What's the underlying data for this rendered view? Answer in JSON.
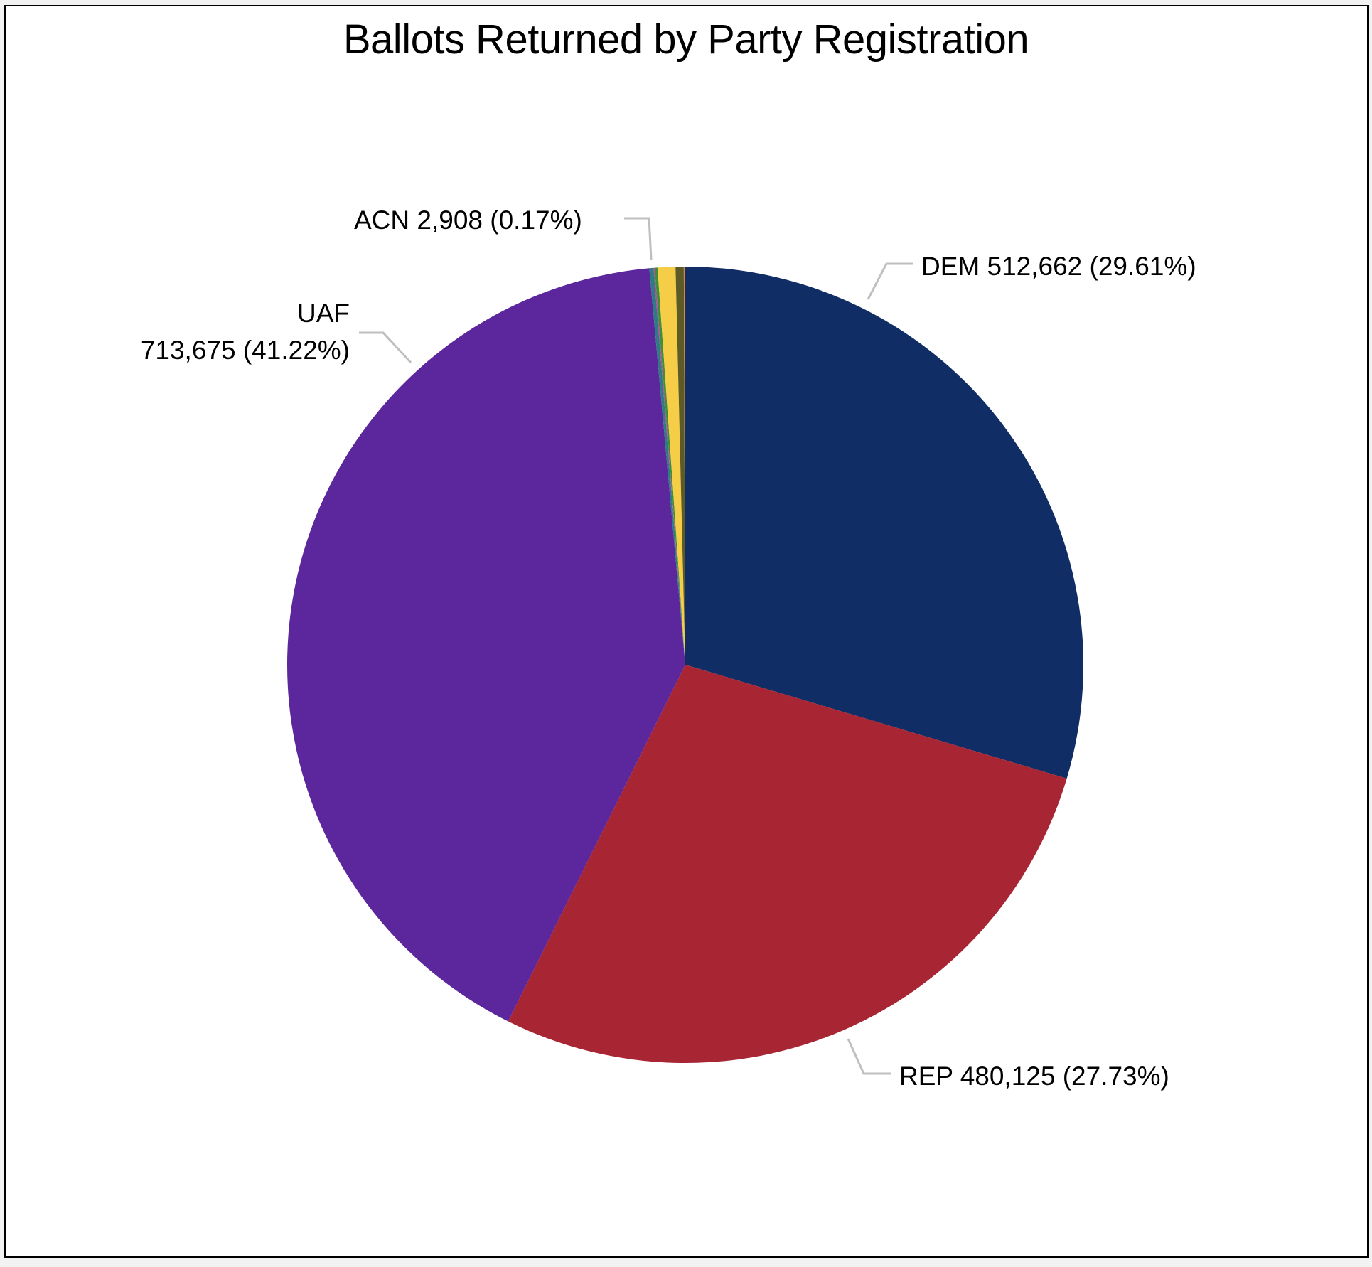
{
  "chart_data": {
    "type": "pie",
    "title": "Ballots Returned by Party Registration",
    "start_angle_deg": 0,
    "direction": "clockwise",
    "slices": [
      {
        "name": "DEM",
        "value": 512662,
        "percent": 29.61,
        "color": "#112d65",
        "label": "DEM 512,662 (29.61%)",
        "labeled": true
      },
      {
        "name": "REP",
        "value": 480125,
        "percent": 27.73,
        "color": "#a82634",
        "label": "REP 480,125 (27.73%)",
        "labeled": true
      },
      {
        "name": "UAF",
        "value": 713675,
        "percent": 41.22,
        "color": "#5c269c",
        "label_line1": "UAF",
        "label_line2": "713,675 (41.22%)",
        "labeled": true
      },
      {
        "name": "ACN",
        "value": 2908,
        "percent": 0.17,
        "color": "#2e7b83",
        "label": "ACN 2,908 (0.17%)",
        "labeled": true
      },
      {
        "name": "other-1",
        "value": null,
        "percent": 0.04,
        "color": "#c43da0",
        "labeled": false
      },
      {
        "name": "other-2",
        "value": null,
        "percent": 0.12,
        "color": "#3f8f3a",
        "labeled": false
      },
      {
        "name": "other-3",
        "value": null,
        "percent": 0.72,
        "color": "#f5cd47",
        "labeled": false
      },
      {
        "name": "other-4",
        "value": null,
        "percent": 0.33,
        "color": "#5e5a26",
        "labeled": false
      },
      {
        "name": "other-5",
        "value": null,
        "percent": 0.06,
        "color": "#d9823b",
        "labeled": false
      }
    ],
    "legend": "none",
    "leader_line_color": "#bfbfbf"
  },
  "labels": {
    "dem": "DEM 512,662 (29.61%)",
    "rep": "REP 480,125 (27.73%)",
    "uaf_line1": "UAF",
    "uaf_line2": "713,675 (41.22%)",
    "acn": "ACN 2,908 (0.17%)"
  }
}
